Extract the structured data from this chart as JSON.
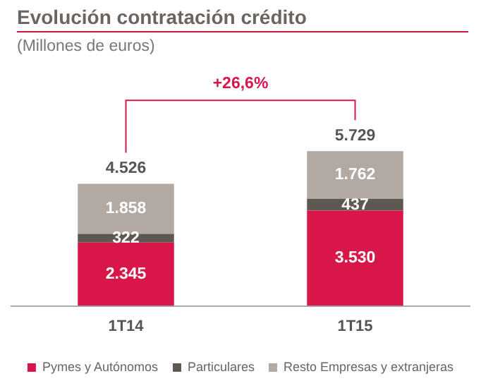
{
  "chart_data": {
    "type": "bar",
    "title": "Evolución contratación crédito",
    "subtitle": "(Millones de euros)",
    "categories": [
      "1T14",
      "1T15"
    ],
    "stacked": true,
    "legend": "bottom",
    "grid": false,
    "tick_labels": "x",
    "series": [
      {
        "name": "Pymes y Autónomos",
        "color": "#d8164a",
        "values": [
          2345,
          3530
        ],
        "value_labels": [
          "2.345",
          "3.530"
        ]
      },
      {
        "name": "Particulares",
        "color": "#5e5853",
        "values": [
          322,
          437
        ],
        "value_labels": [
          "322",
          "437"
        ]
      },
      {
        "name": "Resto Empresas y extranjeras",
        "color": "#b1a9a2",
        "values": [
          1858,
          1762
        ],
        "value_labels": [
          "1.858",
          "1.762"
        ]
      }
    ],
    "totals": [
      "4.526",
      "5.729"
    ],
    "annotations": [
      "+26,6%"
    ]
  }
}
